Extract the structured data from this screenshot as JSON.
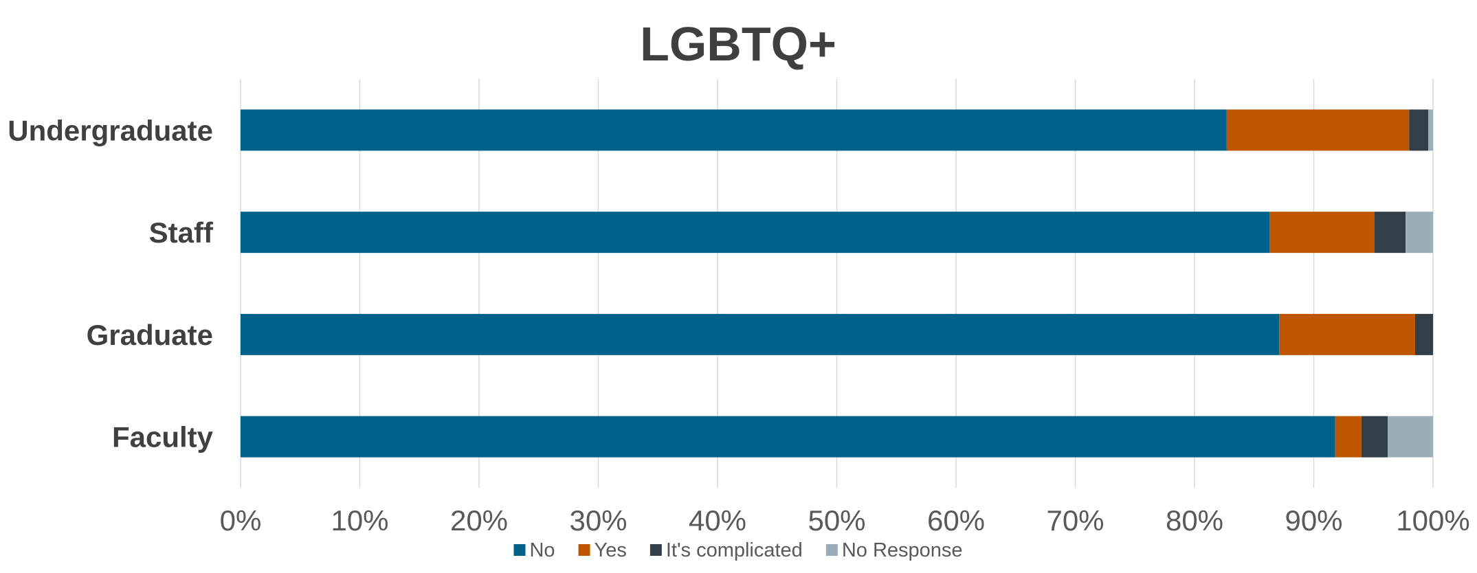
{
  "chart_data": {
    "type": "bar",
    "orientation": "horizontal",
    "stacked": "percent",
    "title": "LGBTQ+",
    "categories": [
      "Undergraduate",
      "Staff",
      "Graduate",
      "Faculty"
    ],
    "series": [
      {
        "name": "No",
        "color": "#00618b",
        "values": [
          82.7,
          86.3,
          87.1,
          91.8
        ]
      },
      {
        "name": "Yes",
        "color": "#bf5700",
        "values": [
          15.3,
          8.8,
          11.4,
          2.2
        ]
      },
      {
        "name": "It's complicated",
        "color": "#333f48",
        "values": [
          1.6,
          2.6,
          1.5,
          2.2
        ]
      },
      {
        "name": "No Response",
        "color": "#9cadb7",
        "values": [
          0.4,
          2.3,
          0.0,
          3.8
        ]
      }
    ],
    "xlim": [
      0,
      100
    ],
    "x_ticks": [
      "0%",
      "10%",
      "20%",
      "30%",
      "40%",
      "50%",
      "60%",
      "70%",
      "80%",
      "90%",
      "100%"
    ],
    "grid": true,
    "legend_position": "bottom"
  }
}
